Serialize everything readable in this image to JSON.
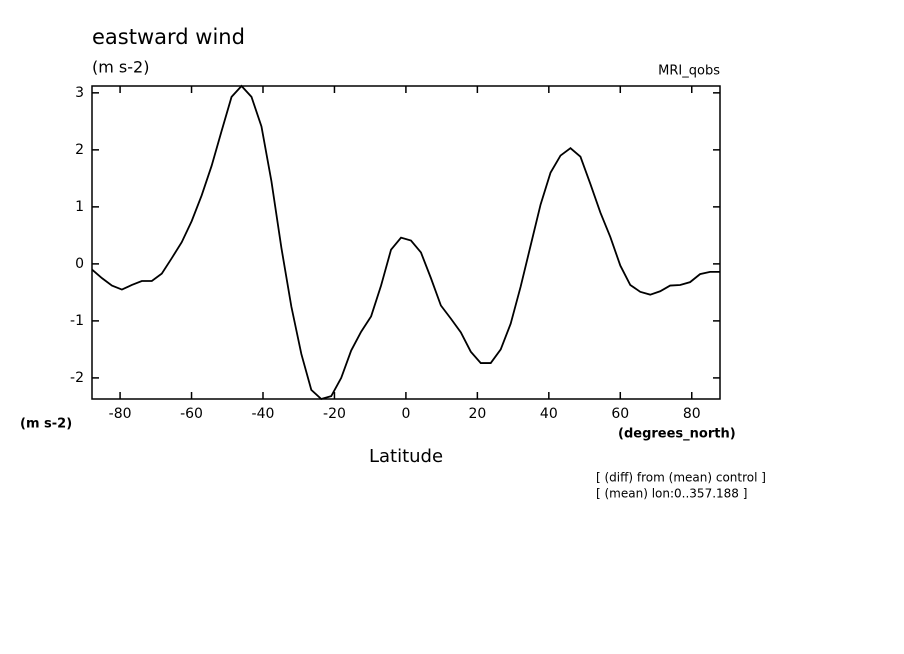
{
  "chart_data": {
    "type": "line",
    "title": "eastward wind",
    "subtitle": "(m s-2)",
    "dataset": "MRI_qobs",
    "y_label": "(m s-2)",
    "x_units": "(degrees_north)",
    "x_label": "Latitude",
    "notes": [
      "[ (diff) from (mean) control ]",
      "[ (mean) lon:0..357.188 ]"
    ],
    "color": "#000000",
    "x": [
      -87.86,
      -85.07,
      -82.28,
      -79.49,
      -76.7,
      -73.91,
      -71.12,
      -68.33,
      -65.54,
      -62.75,
      -59.96,
      -57.17,
      -54.38,
      -51.59,
      -48.8,
      -46.01,
      -43.22,
      -40.43,
      -37.64,
      -34.85,
      -32.06,
      -29.27,
      -26.48,
      -23.69,
      -20.9,
      -18.11,
      -15.32,
      -12.53,
      -9.74,
      -6.95,
      -4.16,
      -1.37,
      1.42,
      4.21,
      7.0,
      9.79,
      12.58,
      15.37,
      18.16,
      20.95,
      23.74,
      26.53,
      29.32,
      32.11,
      34.9,
      37.69,
      40.48,
      43.27,
      46.06,
      48.85,
      51.64,
      54.43,
      57.22,
      60.01,
      62.8,
      65.59,
      68.38,
      71.17,
      73.96,
      76.75,
      79.54,
      82.33,
      85.12,
      87.91
    ],
    "values": [
      -0.1,
      -0.25,
      -0.38,
      -0.45,
      -0.37,
      -0.3,
      -0.3,
      -0.17,
      0.1,
      0.38,
      0.75,
      1.2,
      1.72,
      2.33,
      2.93,
      3.12,
      2.93,
      2.41,
      1.45,
      0.28,
      -0.75,
      -1.58,
      -2.21,
      -2.37,
      -2.32,
      -2.0,
      -1.52,
      -1.19,
      -0.92,
      -0.38,
      0.25,
      0.46,
      0.41,
      0.2,
      -0.25,
      -0.73,
      -0.96,
      -1.2,
      -1.54,
      -1.74,
      -1.74,
      -1.5,
      -1.05,
      -0.4,
      0.32,
      1.04,
      1.6,
      1.9,
      2.03,
      1.88,
      1.4,
      0.9,
      0.47,
      -0.03,
      -0.37,
      -0.49,
      -0.54,
      -0.48,
      -0.38,
      -0.37,
      -0.32,
      -0.18,
      -0.14,
      -0.14
    ],
    "xlim": [
      -87.86,
      87.91
    ],
    "ylim": [
      -2.37,
      3.12
    ],
    "xticks": [
      -80,
      -60,
      -40,
      -20,
      0,
      20,
      40,
      60,
      80
    ],
    "yticks": [
      -2,
      -1,
      0,
      1,
      2,
      3
    ]
  }
}
